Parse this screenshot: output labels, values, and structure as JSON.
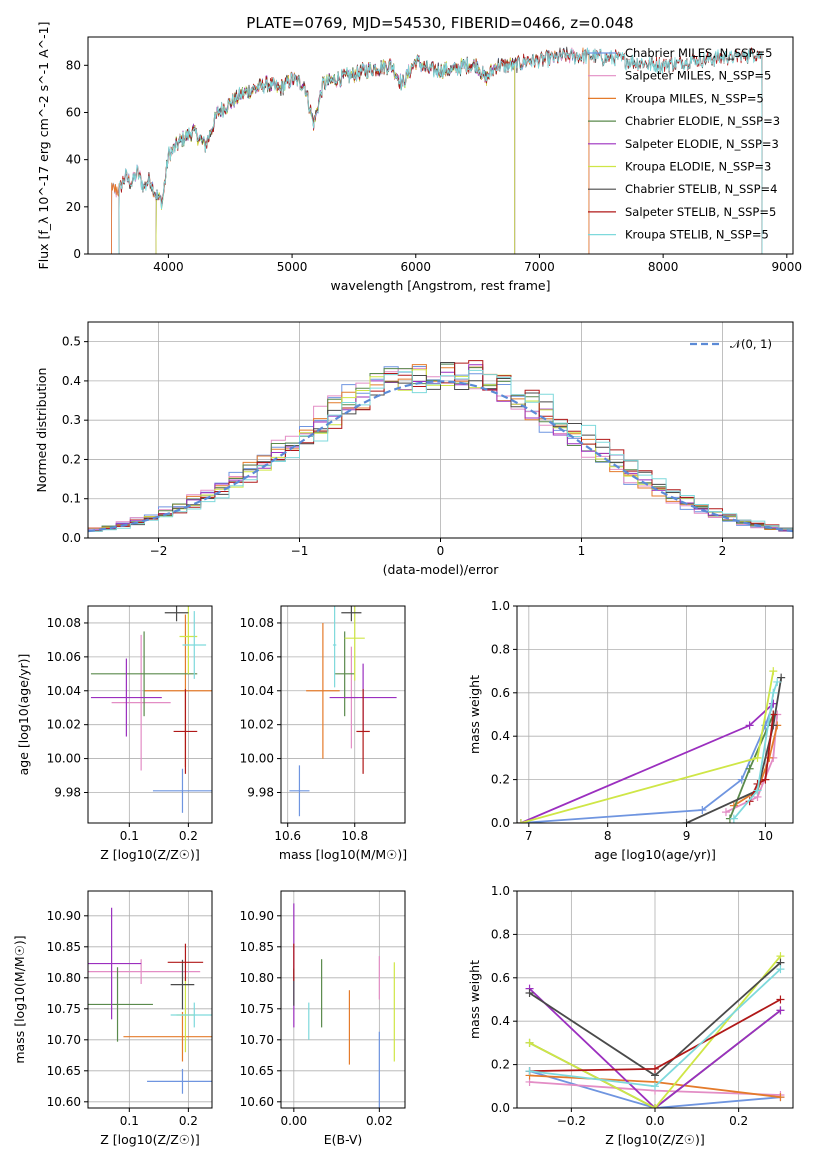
{
  "page": {
    "title": "PLATE=0769, MJD=54530, FIBERID=0466, z=0.048"
  },
  "colors": {
    "Chabrier MILES": "#6f95e0",
    "Salpeter MILES": "#e38dc5",
    "Kroupa MILES": "#e47b2b",
    "Chabrier ELODIE": "#5a8a4c",
    "Salpeter ELODIE": "#9b2fbf",
    "Kroupa ELODIE": "#cfe646",
    "Chabrier STELIB": "#4a4a4a",
    "Salpeter STELIB": "#b01818",
    "Kroupa STELIB": "#7ed9dc",
    "normal_curve": "#5b8ad6",
    "grid": "#b0b0b0"
  },
  "chart_data": [
    {
      "id": "spectrum",
      "type": "line",
      "title": "PLATE=0769, MJD=54530, FIBERID=0466, z=0.048",
      "xlabel": "wavelength [Angstrom, rest frame]",
      "ylabel": "Flux [f_λ 10^-17 erg cm^-2 s^-1 A^-1]",
      "xlim": [
        3350,
        9050
      ],
      "ylim": [
        0,
        92
      ],
      "xticks": [
        4000,
        5000,
        6000,
        7000,
        8000,
        9000
      ],
      "yticks": [
        0,
        20,
        40,
        60,
        80
      ],
      "grid": false,
      "legend_position": "top-right",
      "legend": [
        "Chabrier MILES, N_SSP=5",
        "Salpeter MILES, N_SSP=5",
        "Kroupa MILES, N_SSP=5",
        "Chabrier ELODIE, N_SSP=3",
        "Salpeter ELODIE, N_SSP=3",
        "Kroupa ELODIE, N_SSP=3",
        "Chabrier STELIB, N_SSP=4",
        "Salpeter STELIB, N_SSP=5",
        "Kroupa STELIB, N_SSP=5"
      ],
      "data_curve": {
        "x": [
          3600,
          3650,
          3700,
          3750,
          3800,
          3850,
          3900,
          3950,
          4000,
          4100,
          4200,
          4300,
          4400,
          4500,
          4600,
          4700,
          4800,
          4900,
          5000,
          5100,
          5175,
          5250,
          5350,
          5500,
          5600,
          5800,
          5890,
          6000,
          6100,
          6200,
          6300,
          6400,
          6500,
          6563,
          6650,
          6800,
          6900,
          7000,
          7100,
          7200,
          7400,
          7600,
          7800,
          8000,
          8200,
          8400,
          8600,
          8800
        ],
        "y": [
          27,
          33,
          30,
          35,
          28,
          32,
          25,
          22,
          42,
          48,
          52,
          46,
          60,
          64,
          68,
          70,
          72,
          70,
          74,
          72,
          55,
          72,
          74,
          76,
          78,
          80,
          72,
          82,
          78,
          78,
          78,
          80,
          80,
          74,
          80,
          80,
          82,
          82,
          83,
          84,
          84,
          83,
          81,
          80,
          82,
          83,
          84,
          85
        ]
      },
      "model_ranges": [
        {
          "series": "Chabrier MILES",
          "xmin": 3540,
          "xmax": 7400
        },
        {
          "series": "Salpeter MILES",
          "xmin": 3540,
          "xmax": 7400
        },
        {
          "series": "Kroupa MILES",
          "xmin": 3540,
          "xmax": 7400
        },
        {
          "series": "Chabrier ELODIE",
          "xmin": 3900,
          "xmax": 6800
        },
        {
          "series": "Salpeter ELODIE",
          "xmin": 3900,
          "xmax": 6800
        },
        {
          "series": "Kroupa ELODIE",
          "xmin": 3900,
          "xmax": 6800
        },
        {
          "series": "Chabrier STELIB",
          "xmin": 3600,
          "xmax": 8800
        },
        {
          "series": "Salpeter STELIB",
          "xmin": 3600,
          "xmax": 8800
        },
        {
          "series": "Kroupa STELIB",
          "xmin": 3600,
          "xmax": 8800
        }
      ]
    },
    {
      "id": "residuals",
      "type": "histogram",
      "xlabel": "(data-model)/error",
      "ylabel": "Normed distribution",
      "xlim": [
        -2.5,
        2.5
      ],
      "ylim": [
        0,
        0.55
      ],
      "xticks": [
        -2,
        -1,
        0,
        1,
        2
      ],
      "yticks": [
        0.0,
        0.1,
        0.2,
        0.3,
        0.4,
        0.5
      ],
      "grid": true,
      "legend_position": "top-right",
      "legend": [
        "𝒩(0, 1)"
      ],
      "bin_width": 0.1,
      "normal_curve": {
        "mean": 0,
        "sigma": 1
      }
    },
    {
      "id": "age-vs-Z",
      "type": "errorbar",
      "xlabel": "Z [log10(Z/Z☉)]",
      "ylabel": "age [log10(age/yr)]",
      "xlim": [
        0.03,
        0.24
      ],
      "ylim": [
        9.962,
        10.09
      ],
      "xticks": [
        0.1,
        0.2
      ],
      "yticks": [
        9.98,
        10.0,
        10.02,
        10.04,
        10.06,
        10.08
      ],
      "grid": true,
      "points": [
        {
          "series": "Chabrier MILES",
          "x": 0.19,
          "xerr": 0.05,
          "y": 9.981,
          "yerr": 0.013
        },
        {
          "series": "Salpeter MILES",
          "x": 0.12,
          "xerr": 0.05,
          "y": 10.033,
          "yerr": 0.04
        },
        {
          "series": "Kroupa MILES",
          "x": 0.195,
          "xerr": 0.07,
          "y": 10.04,
          "yerr": 0.045
        },
        {
          "series": "Chabrier ELODIE",
          "x": 0.125,
          "xerr": 0.09,
          "y": 10.05,
          "yerr": 0.025
        },
        {
          "series": "Salpeter ELODIE",
          "x": 0.095,
          "xerr": 0.06,
          "y": 10.036,
          "yerr": 0.023
        },
        {
          "series": "Kroupa ELODIE",
          "x": 0.2,
          "xerr": 0.015,
          "y": 10.072,
          "yerr": 0.022
        },
        {
          "series": "Chabrier STELIB",
          "x": 0.18,
          "xerr": 0.02,
          "y": 10.086,
          "yerr": 0.005
        },
        {
          "series": "Salpeter STELIB",
          "x": 0.195,
          "xerr": 0.02,
          "y": 10.016,
          "yerr": 0.025
        },
        {
          "series": "Kroupa STELIB",
          "x": 0.21,
          "xerr": 0.02,
          "y": 10.067,
          "yerr": 0.02
        }
      ]
    },
    {
      "id": "age-vs-mass",
      "type": "errorbar",
      "xlabel": "mass [log10(M/M☉)]",
      "ylabel": "",
      "xlim": [
        10.58,
        10.95
      ],
      "ylim": [
        9.962,
        10.09
      ],
      "xticks": [
        10.6,
        10.8
      ],
      "yticks": [
        9.98,
        10.0,
        10.02,
        10.04,
        10.06,
        10.08
      ],
      "grid": true,
      "points": [
        {
          "series": "Chabrier MILES",
          "x": 10.635,
          "xerr": 0.03,
          "y": 9.981,
          "yerr": 0.015
        },
        {
          "series": "Salpeter MILES",
          "x": 10.79,
          "xerr": 0.02,
          "y": 10.036,
          "yerr": 0.03
        },
        {
          "series": "Kroupa MILES",
          "x": 10.705,
          "xerr": 0.05,
          "y": 10.04,
          "yerr": 0.04
        },
        {
          "series": "Chabrier ELODIE",
          "x": 10.77,
          "xerr": 0.03,
          "y": 10.05,
          "yerr": 0.025
        },
        {
          "series": "Salpeter ELODIE",
          "x": 10.825,
          "xerr": 0.1,
          "y": 10.036,
          "yerr": 0.02
        },
        {
          "series": "Kroupa ELODIE",
          "x": 10.8,
          "xerr": 0.03,
          "y": 10.071,
          "yerr": 0.025
        },
        {
          "series": "Chabrier STELIB",
          "x": 10.79,
          "xerr": 0.03,
          "y": 10.086,
          "yerr": 0.005
        },
        {
          "series": "Salpeter STELIB",
          "x": 10.825,
          "xerr": 0.02,
          "y": 10.016,
          "yerr": 0.025
        },
        {
          "series": "Kroupa STELIB",
          "x": 10.74,
          "xerr": 0.005,
          "y": 10.067,
          "yerr": 0.025
        }
      ]
    },
    {
      "id": "mass-weight-vs-age",
      "type": "line",
      "xlabel": "age [log10(age/yr)]",
      "ylabel": "mass weight",
      "xlim": [
        6.85,
        10.35
      ],
      "ylim": [
        0,
        1.0
      ],
      "xticks": [
        7,
        8,
        9,
        10
      ],
      "yticks": [
        0.0,
        0.2,
        0.4,
        0.6,
        0.8,
        1.0
      ],
      "grid": true,
      "series": [
        {
          "name": "Chabrier MILES",
          "x": [
            6.9,
            9.2,
            9.7,
            10.0,
            10.1
          ],
          "y": [
            0.0,
            0.06,
            0.2,
            0.45,
            0.55
          ]
        },
        {
          "name": "Salpeter MILES",
          "x": [
            9.5,
            9.9,
            10.1,
            10.15
          ],
          "y": [
            0.05,
            0.12,
            0.3,
            0.5
          ]
        },
        {
          "name": "Kroupa MILES",
          "x": [
            9.6,
            9.9,
            10.05,
            10.15
          ],
          "y": [
            0.08,
            0.15,
            0.3,
            0.45
          ]
        },
        {
          "name": "Chabrier ELODIE",
          "x": [
            9.55,
            9.8,
            10.1
          ],
          "y": [
            0.02,
            0.25,
            0.5
          ]
        },
        {
          "name": "Salpeter ELODIE",
          "x": [
            6.9,
            9.8,
            10.1
          ],
          "y": [
            0.0,
            0.45,
            0.55
          ]
        },
        {
          "name": "Kroupa ELODIE",
          "x": [
            6.9,
            9.9,
            10.1
          ],
          "y": [
            0.0,
            0.3,
            0.7
          ]
        },
        {
          "name": "Chabrier STELIB",
          "x": [
            9.0,
            9.9,
            10.1,
            10.2
          ],
          "y": [
            0.0,
            0.15,
            0.45,
            0.67
          ]
        },
        {
          "name": "Salpeter STELIB",
          "x": [
            9.8,
            9.9,
            10.0,
            10.1
          ],
          "y": [
            0.1,
            0.18,
            0.2,
            0.5
          ]
        },
        {
          "name": "Kroupa STELIB",
          "x": [
            9.6,
            9.9,
            10.1,
            10.15
          ],
          "y": [
            0.02,
            0.15,
            0.6,
            0.65
          ]
        }
      ]
    },
    {
      "id": "mass-vs-Z",
      "type": "errorbar",
      "xlabel": "Z [log10(Z/Z☉)]",
      "ylabel": "mass [log10(M/M☉)]",
      "xlim": [
        0.03,
        0.24
      ],
      "ylim": [
        10.59,
        10.94
      ],
      "xticks": [
        0.1,
        0.2
      ],
      "yticks": [
        10.6,
        10.65,
        10.7,
        10.75,
        10.8,
        10.85,
        10.9
      ],
      "grid": true,
      "points": [
        {
          "series": "Chabrier MILES",
          "x": 0.19,
          "xerr": 0.06,
          "y": 10.633,
          "yerr": 0.02
        },
        {
          "series": "Salpeter MILES",
          "x": 0.12,
          "xerr": 0.1,
          "y": 10.81,
          "yerr": 0.02
        },
        {
          "series": "Kroupa MILES",
          "x": 0.19,
          "xerr": 0.1,
          "y": 10.705,
          "yerr": 0.04
        },
        {
          "series": "Chabrier ELODIE",
          "x": 0.08,
          "xerr": 0.06,
          "y": 10.757,
          "yerr": 0.06
        },
        {
          "series": "Salpeter ELODIE",
          "x": 0.07,
          "xerr": 0.05,
          "y": 10.823,
          "yerr": 0.09
        },
        {
          "series": "Kroupa ELODIE",
          "x": 0.195,
          "xerr": 0.015,
          "y": 10.74,
          "yerr": 0.06
        },
        {
          "series": "Chabrier STELIB",
          "x": 0.19,
          "xerr": 0.02,
          "y": 10.789,
          "yerr": 0.04
        },
        {
          "series": "Salpeter STELIB",
          "x": 0.195,
          "xerr": 0.03,
          "y": 10.825,
          "yerr": 0.03
        },
        {
          "series": "Kroupa STELIB",
          "x": 0.21,
          "xerr": 0.04,
          "y": 10.74,
          "yerr": 0.02
        }
      ]
    },
    {
      "id": "mass-vs-ebv",
      "type": "errorbar",
      "xlabel": "E(B-V)",
      "ylabel": "",
      "xlim": [
        -0.003,
        0.026
      ],
      "ylim": [
        10.59,
        10.94
      ],
      "xticks": [
        0.0,
        0.02
      ],
      "yticks": [
        10.6,
        10.65,
        10.7,
        10.75,
        10.8,
        10.85,
        10.9
      ],
      "grid": true,
      "points": [
        {
          "series": "Chabrier MILES",
          "x": 0.02,
          "xerr": 0,
          "y": 10.633,
          "yerr": 0.08
        },
        {
          "series": "Salpeter MILES",
          "x": 0.02,
          "xerr": 0,
          "y": 10.8,
          "yerr": 0.035
        },
        {
          "series": "Kroupa MILES",
          "x": 0.013,
          "xerr": 0,
          "y": 10.72,
          "yerr": 0.06
        },
        {
          "series": "Chabrier ELODIE",
          "x": 0.0065,
          "xerr": 0,
          "y": 10.775,
          "yerr": 0.055
        },
        {
          "series": "Salpeter ELODIE",
          "x": 0.0,
          "xerr": 0,
          "y": 10.82,
          "yerr": 0.1
        },
        {
          "series": "Kroupa ELODIE",
          "x": 0.0235,
          "xerr": 0,
          "y": 10.745,
          "yerr": 0.08
        },
        {
          "series": "Chabrier STELIB",
          "x": 0.0,
          "xerr": 0,
          "y": 10.785,
          "yerr": 0.03
        },
        {
          "series": "Salpeter STELIB",
          "x": 0.0,
          "xerr": 0,
          "y": 10.825,
          "yerr": 0.03
        },
        {
          "series": "Kroupa STELIB",
          "x": 0.0035,
          "xerr": 0,
          "y": 10.73,
          "yerr": 0.03
        }
      ]
    },
    {
      "id": "mass-weight-vs-Z",
      "type": "line",
      "xlabel": "Z [log10(Z/Z☉)]",
      "ylabel": "mass weight",
      "xlim": [
        -0.33,
        0.33
      ],
      "ylim": [
        0,
        1.0
      ],
      "xticks": [
        -0.2,
        0.0,
        0.2
      ],
      "yticks": [
        0.0,
        0.2,
        0.4,
        0.6,
        0.8,
        1.0
      ],
      "grid": true,
      "series": [
        {
          "name": "Chabrier MILES",
          "x": [
            -0.3,
            0.0,
            0.3
          ],
          "y": [
            0.17,
            0.0,
            0.05
          ]
        },
        {
          "name": "Salpeter MILES",
          "x": [
            -0.3,
            0.0,
            0.3
          ],
          "y": [
            0.12,
            0.08,
            0.06
          ]
        },
        {
          "name": "Kroupa MILES",
          "x": [
            -0.3,
            0.0,
            0.3
          ],
          "y": [
            0.15,
            0.12,
            0.05
          ]
        },
        {
          "name": "Chabrier ELODIE",
          "x": [
            -0.3,
            0.0,
            0.3
          ],
          "y": [
            0.3,
            0.0,
            0.45
          ]
        },
        {
          "name": "Salpeter ELODIE",
          "x": [
            -0.3,
            0.0,
            0.3
          ],
          "y": [
            0.55,
            0.0,
            0.45
          ]
        },
        {
          "name": "Kroupa ELODIE",
          "x": [
            -0.3,
            0.0,
            0.3
          ],
          "y": [
            0.3,
            0.0,
            0.7
          ]
        },
        {
          "name": "Chabrier STELIB",
          "x": [
            -0.3,
            0.0,
            0.3
          ],
          "y": [
            0.53,
            0.15,
            0.67
          ]
        },
        {
          "name": "Salpeter STELIB",
          "x": [
            -0.3,
            0.0,
            0.3
          ],
          "y": [
            0.17,
            0.18,
            0.5
          ]
        },
        {
          "name": "Kroupa STELIB",
          "x": [
            -0.3,
            0.0,
            0.3
          ],
          "y": [
            0.17,
            0.1,
            0.64
          ]
        }
      ]
    }
  ]
}
